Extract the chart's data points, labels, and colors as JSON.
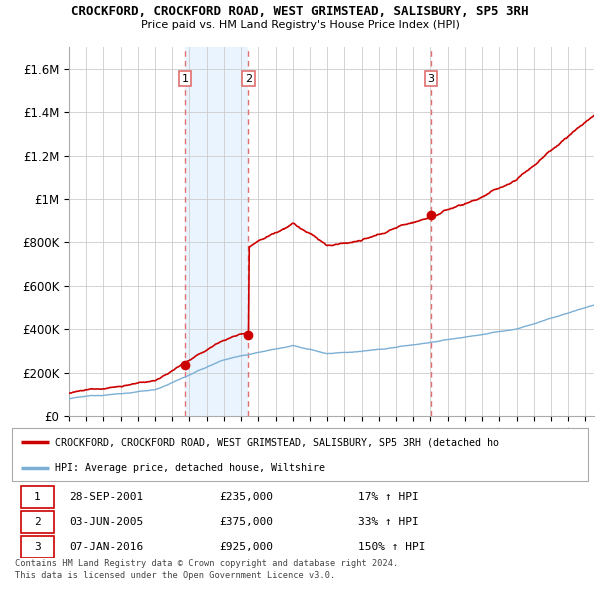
{
  "title": "CROCKFORD, CROCKFORD ROAD, WEST GRIMSTEAD, SALISBURY, SP5 3RH",
  "subtitle": "Price paid vs. HM Land Registry's House Price Index (HPI)",
  "sales": [
    {
      "date_x": 2001.75,
      "price": 235000,
      "label": "1",
      "date_str": "28-SEP-2001",
      "pct": "17% ↑ HPI"
    },
    {
      "date_x": 2005.42,
      "price": 375000,
      "label": "2",
      "date_str": "03-JUN-2005",
      "pct": "33% ↑ HPI"
    },
    {
      "date_x": 2016.03,
      "price": 925000,
      "label": "3",
      "date_str": "07-JAN-2016",
      "pct": "150% ↑ HPI"
    }
  ],
  "legend_label_red": "CROCKFORD, CROCKFORD ROAD, WEST GRIMSTEAD, SALISBURY, SP5 3RH (detached ho",
  "legend_label_blue": "HPI: Average price, detached house, Wiltshire",
  "footer1": "Contains HM Land Registry data © Crown copyright and database right 2024.",
  "footer2": "This data is licensed under the Open Government Licence v3.0.",
  "xmin": 1995,
  "xmax": 2025.5,
  "ymin": 0,
  "ymax": 1700000,
  "yticks": [
    0,
    200000,
    400000,
    600000,
    800000,
    1000000,
    1200000,
    1400000,
    1600000
  ],
  "ytick_labels": [
    "£0",
    "£200K",
    "£400K",
    "£600K",
    "£800K",
    "£1M",
    "£1.2M",
    "£1.4M",
    "£1.6M"
  ],
  "background_color": "#ffffff",
  "grid_color": "#cccccc",
  "red_color": "#cc0000",
  "blue_color": "#7bafd4",
  "dashed_color": "#e07070",
  "shade_color": "#ddeeff",
  "sale1_x": 2001.75,
  "sale2_x": 2005.42,
  "sale3_x": 2016.03,
  "sale1_p": 235000,
  "sale2_p": 375000,
  "sale3_p": 925000
}
